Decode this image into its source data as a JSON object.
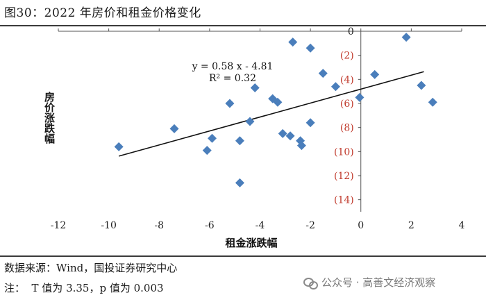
{
  "figure": {
    "title": "图30：2022 年房价和租金价格变化",
    "source": "数据来源：Wind，国投证券研究中心",
    "note": "注：  T 值为 3.35，p 值为 0.003",
    "watermark": "公众号 · 高善文经济观察",
    "watermark_icon": "wechat-icon"
  },
  "chart_data": {
    "type": "scatter",
    "xlabel": "租金涨跌幅",
    "ylabel": "房价涨跌幅",
    "xlim": [
      -12,
      4
    ],
    "ylim": [
      0,
      15
    ],
    "y_inverted": true,
    "x_ticks": [
      -12,
      -10,
      -8,
      -6,
      -4,
      -2,
      0,
      2,
      4
    ],
    "x_tick_labels": [
      "-12",
      "-10",
      "-8",
      "-6",
      "-4",
      "-2",
      "0",
      "2",
      "4"
    ],
    "y_ticks": [
      0,
      2,
      4,
      6,
      8,
      10,
      12,
      14
    ],
    "y_tick_labels": [
      "0",
      "(2)",
      "(4)",
      "(6)",
      "(8)",
      "(10)",
      "(12)",
      "(14)"
    ],
    "grid": false,
    "marker_color": "#4a7ebb",
    "negative_label_color": "#c0392b",
    "points": [
      {
        "x": -9.6,
        "y": 9.6
      },
      {
        "x": -7.4,
        "y": 8.1
      },
      {
        "x": -6.1,
        "y": 9.9
      },
      {
        "x": -5.9,
        "y": 8.9
      },
      {
        "x": -5.2,
        "y": 6.0
      },
      {
        "x": -4.8,
        "y": 12.6
      },
      {
        "x": -4.8,
        "y": 9.1
      },
      {
        "x": -4.4,
        "y": 7.5
      },
      {
        "x": -4.2,
        "y": 4.7
      },
      {
        "x": -3.5,
        "y": 5.6
      },
      {
        "x": -3.3,
        "y": 5.9
      },
      {
        "x": -3.1,
        "y": 8.5
      },
      {
        "x": -2.8,
        "y": 8.7
      },
      {
        "x": -2.7,
        "y": 0.9
      },
      {
        "x": -2.4,
        "y": 9.1
      },
      {
        "x": -2.35,
        "y": 9.5
      },
      {
        "x": -2.0,
        "y": 7.6
      },
      {
        "x": -2.0,
        "y": 1.4
      },
      {
        "x": -1.5,
        "y": 3.5
      },
      {
        "x": -1.0,
        "y": 4.6
      },
      {
        "x": -0.05,
        "y": 5.5
      },
      {
        "x": 0.55,
        "y": 3.6
      },
      {
        "x": 1.8,
        "y": 0.5
      },
      {
        "x": 2.4,
        "y": 4.5
      },
      {
        "x": 2.85,
        "y": 5.9
      }
    ],
    "trendline": {
      "x_range": [
        -9.6,
        2.5
      ],
      "slope": 0.58,
      "intercept": -4.81,
      "equation": "y = 0.58 x - 4.81",
      "r_squared": "R² = 0.32"
    }
  }
}
